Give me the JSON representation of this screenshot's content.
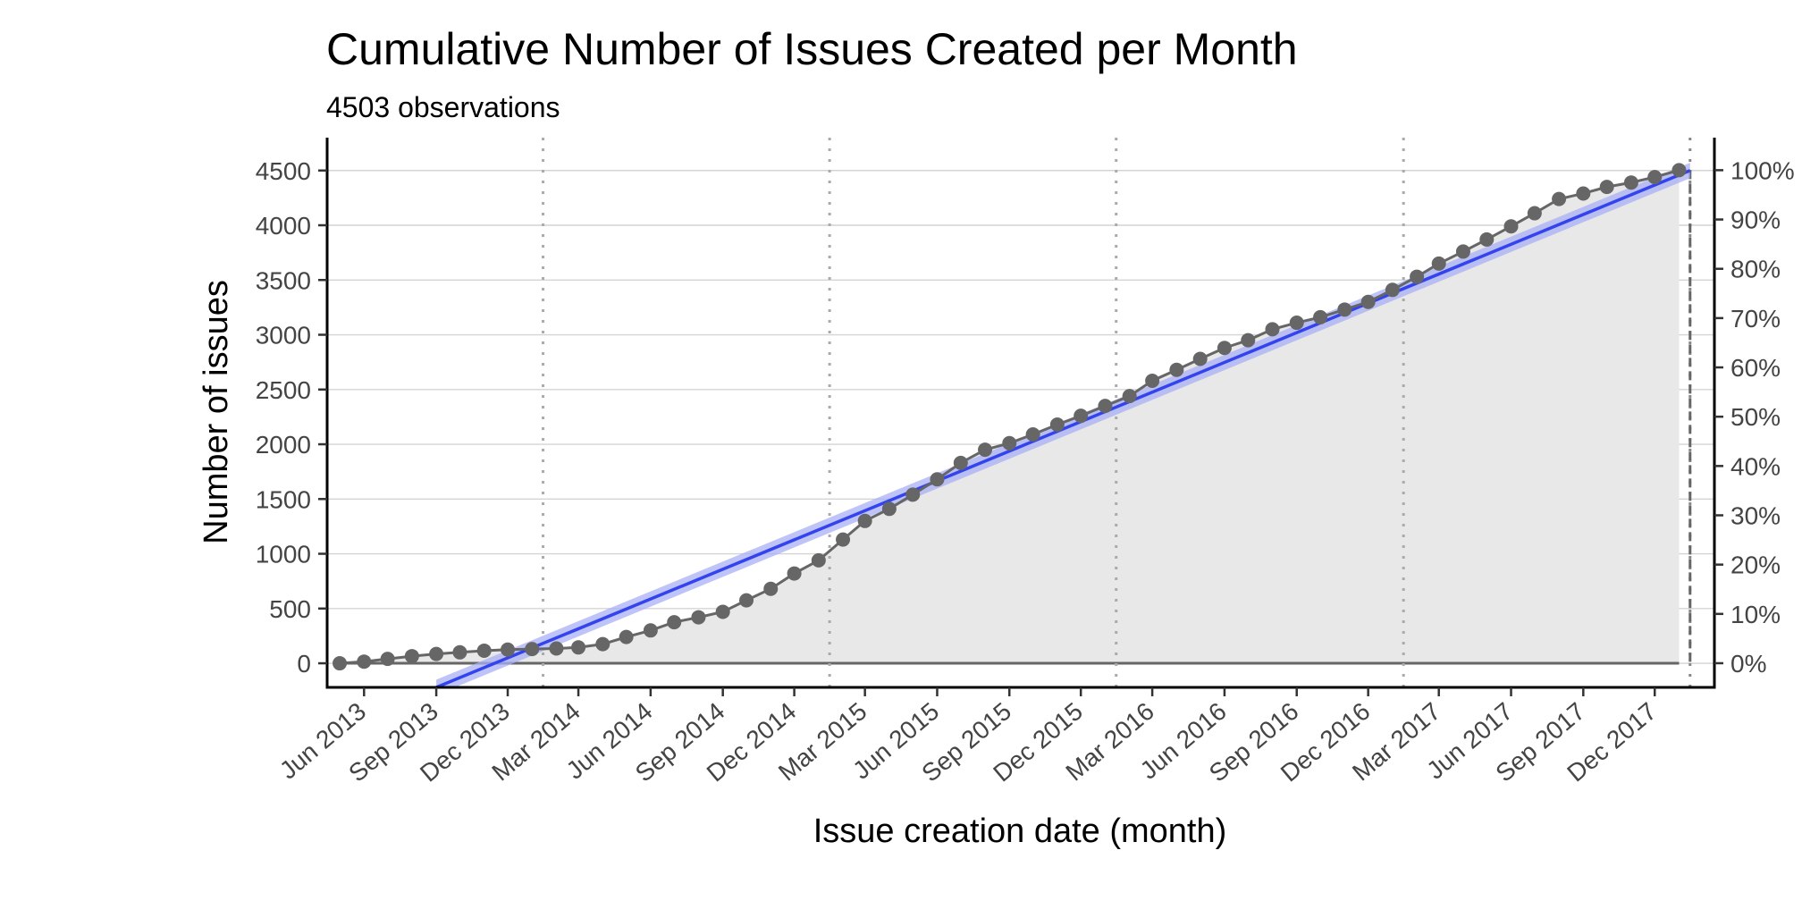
{
  "chart_data": {
    "type": "line",
    "title": "Cumulative Number of Issues Created per Month",
    "subtitle": "4503 observations",
    "xlabel": "Issue creation date (month)",
    "ylabel": "Number of issues",
    "y_ticks": [
      "0",
      "500",
      "1000",
      "1500",
      "2000",
      "2500",
      "3000",
      "3500",
      "4000",
      "4500"
    ],
    "y_tick_values": [
      0,
      500,
      1000,
      1500,
      2000,
      2500,
      3000,
      3500,
      4000,
      4500
    ],
    "y2_ticks": [
      "0%",
      "10%",
      "20%",
      "30%",
      "40%",
      "50%",
      "60%",
      "70%",
      "80%",
      "90%",
      "100%"
    ],
    "y2_tick_values": [
      0,
      10,
      20,
      30,
      40,
      50,
      60,
      70,
      80,
      90,
      100
    ],
    "x_ticks": [
      "Jun 2013",
      "Sep 2013",
      "Dec 2013",
      "Mar 2014",
      "Jun 2014",
      "Sep 2014",
      "Dec 2014",
      "Mar 2015",
      "Jun 2015",
      "Sep 2015",
      "Dec 2015",
      "Mar 2016",
      "Jun 2016",
      "Sep 2016",
      "Dec 2016",
      "Mar 2017",
      "Jun 2017",
      "Sep 2017",
      "Dec 2017"
    ],
    "x_tick_dates": [
      "2013-06",
      "2013-09",
      "2013-12",
      "2014-03",
      "2014-06",
      "2014-09",
      "2014-12",
      "2015-03",
      "2015-06",
      "2015-09",
      "2015-12",
      "2016-03",
      "2016-06",
      "2016-09",
      "2016-12",
      "2017-03",
      "2017-06",
      "2017-09",
      "2017-12"
    ],
    "xlim": [
      "2013-04-15",
      "2018-02-15"
    ],
    "ylim": [
      -220,
      4800
    ],
    "y2lim": [
      -4.9,
      106.6
    ],
    "vlines": [
      "2014-01-15",
      "2015-01-15",
      "2016-01-15",
      "2017-01-15"
    ],
    "end_line": "2018-01-15",
    "series": [
      {
        "type": "line",
        "x": [
          "2013-05",
          "2013-06",
          "2013-07",
          "2013-08",
          "2013-09",
          "2013-10",
          "2013-11",
          "2013-12",
          "2014-01",
          "2014-02",
          "2014-03",
          "2014-04",
          "2014-05",
          "2014-06",
          "2014-07",
          "2014-08",
          "2014-09",
          "2014-10",
          "2014-11",
          "2014-12",
          "2015-01",
          "2015-02",
          "2015-03",
          "2015-04",
          "2015-05",
          "2015-06",
          "2015-07",
          "2015-08",
          "2015-09",
          "2015-10",
          "2015-11",
          "2015-12",
          "2016-01",
          "2016-02",
          "2016-03",
          "2016-04",
          "2016-05",
          "2016-06",
          "2016-07",
          "2016-08",
          "2016-09",
          "2016-10",
          "2016-11",
          "2016-12",
          "2017-01",
          "2017-02",
          "2017-03",
          "2017-04",
          "2017-05",
          "2017-06",
          "2017-07",
          "2017-08",
          "2017-09",
          "2017-10",
          "2017-11",
          "2017-12",
          "2018-01"
        ],
        "y": [
          0,
          15,
          40,
          65,
          85,
          100,
          115,
          125,
          130,
          135,
          145,
          175,
          240,
          300,
          375,
          420,
          470,
          575,
          680,
          820,
          940,
          1130,
          1300,
          1410,
          1540,
          1680,
          1830,
          1950,
          2010,
          2090,
          2180,
          2260,
          2350,
          2440,
          2580,
          2680,
          2780,
          2880,
          2950,
          3050,
          3110,
          3160,
          3230,
          3300,
          3410,
          3530,
          3650,
          3760,
          3870,
          3990,
          4110,
          4240,
          4290,
          4350,
          4390,
          4440,
          4503
        ]
      },
      {
        "type": "linear-fit",
        "x": [
          "2013-09-01",
          "2018-01-15"
        ],
        "y": [
          -220,
          4500
        ],
        "band": 70
      }
    ],
    "colors": {
      "points": "#666666",
      "fit_line": "#3344ee",
      "fit_band": "#aab0f5",
      "area": "#e8e8e8",
      "grid": "#d4d4d4",
      "vline": "#aaaaaa"
    }
  }
}
